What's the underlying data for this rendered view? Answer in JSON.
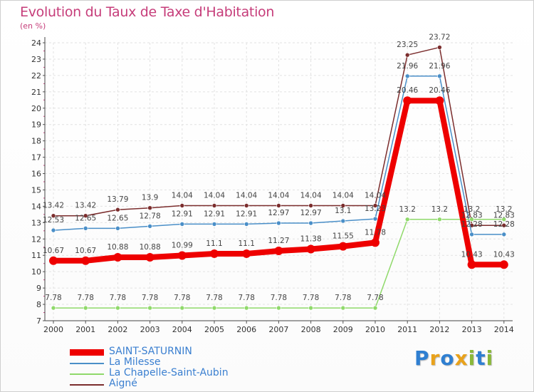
{
  "header": {
    "title": "Evolution du Taux de Taxe d'Habitation",
    "unit": "(en %)"
  },
  "logo": {
    "text": "Proxiti",
    "letters": [
      {
        "ch": "P",
        "color": "#2f7fd1"
      },
      {
        "ch": "r",
        "color": "#e9a21b"
      },
      {
        "ch": "o",
        "color": "#2f7fd1"
      },
      {
        "ch": "x",
        "color": "#e9a21b"
      },
      {
        "ch": "i",
        "color": "#8ab83a"
      },
      {
        "ch": "t",
        "color": "#2f7fd1"
      },
      {
        "ch": "i",
        "color": "#8ab83a"
      }
    ]
  },
  "chart_data": {
    "type": "line",
    "title": "Evolution du Taux de Taxe d'Habitation",
    "ylabel": "(en %)",
    "xlabel": "",
    "ylim": [
      7,
      24
    ],
    "yticks": [
      7,
      8,
      9,
      10,
      11,
      12,
      13,
      14,
      15,
      16,
      17,
      18,
      19,
      20,
      21,
      22,
      23,
      24
    ],
    "x": [
      "2000",
      "2001",
      "2002",
      "2003",
      "2004",
      "2005",
      "2006",
      "2007",
      "2008",
      "2009",
      "2010",
      "2011",
      "2012",
      "2013",
      "2014"
    ],
    "grid": true,
    "legend_position": "bottom-left",
    "series": [
      {
        "name": "Aigné",
        "color": "#7b2d2d",
        "values": [
          13.42,
          13.42,
          13.79,
          13.9,
          14.04,
          14.04,
          14.04,
          14.04,
          14.04,
          14.04,
          14.04,
          23.25,
          23.72,
          12.83,
          12.83
        ],
        "labels": [
          "13.42",
          "13.42",
          "13.79",
          "13.9",
          "14.04",
          "14.04",
          "14.04",
          "14.04",
          "14.04",
          "14.04",
          "14.04",
          "23.25",
          "23.72",
          "12.83",
          "12.83"
        ]
      },
      {
        "name": "La Milesse",
        "color": "#4a8fc8",
        "values": [
          12.53,
          12.65,
          12.65,
          12.78,
          12.91,
          12.91,
          12.91,
          12.97,
          12.97,
          13.1,
          13.23,
          21.96,
          21.96,
          12.28,
          12.28
        ],
        "labels": [
          "12.53",
          "12.65",
          "12.65",
          "12.78",
          "12.91",
          "12.91",
          "12.91",
          "12.97",
          "12.97",
          "13.1",
          "13.23",
          "21.96",
          "21.96",
          "12.28",
          "12.28"
        ]
      },
      {
        "name": "La Chapelle-Saint-Aubin",
        "color": "#8fd96a",
        "values": [
          7.78,
          7.78,
          7.78,
          7.78,
          7.78,
          7.78,
          7.78,
          7.78,
          7.78,
          7.78,
          7.78,
          13.2,
          13.2,
          13.2,
          13.2
        ],
        "labels": [
          "7.78",
          "7.78",
          "7.78",
          "7.78",
          "7.78",
          "7.78",
          "7.78",
          "7.78",
          "7.78",
          "7.78",
          "7.78",
          "13.2",
          "13.2",
          "13.2",
          "13.2"
        ]
      },
      {
        "name": "SAINT-SATURNIN",
        "color": "#ee0000",
        "values": [
          10.67,
          10.67,
          10.88,
          10.88,
          10.99,
          11.1,
          11.1,
          11.27,
          11.38,
          11.55,
          11.78,
          20.46,
          20.46,
          10.43,
          10.43
        ],
        "labels": [
          "10.67",
          "10.67",
          "10.88",
          "10.88",
          "10.99",
          "11.1",
          "11.1",
          "11.27",
          "11.38",
          "11.55",
          "11.78",
          "20.46",
          "20.46",
          "10.43",
          "10.43"
        ]
      }
    ],
    "legend": [
      "SAINT-SATURNIN",
      "La Milesse",
      "La Chapelle-Saint-Aubin",
      "Aigné"
    ]
  }
}
